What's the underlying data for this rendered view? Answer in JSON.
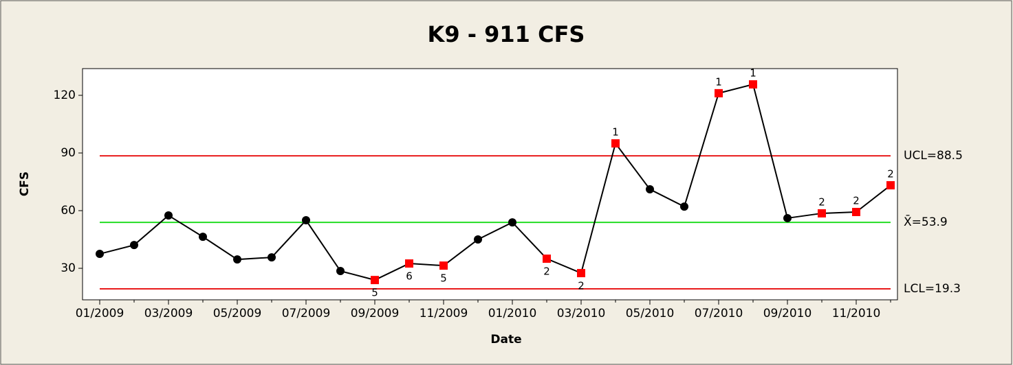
{
  "chart_data": {
    "type": "control",
    "title": "K9 - 911 CFS",
    "xlabel": "Date",
    "ylabel": "CFS",
    "categories": [
      "01/2009",
      null,
      "03/2009",
      null,
      "05/2009",
      null,
      "07/2009",
      null,
      "09/2009",
      null,
      "11/2009",
      null,
      "01/2010",
      null,
      "03/2010",
      null,
      "05/2010",
      null,
      "07/2010",
      null,
      "09/2010",
      null,
      "11/2010",
      null
    ],
    "values": [
      37.5,
      42.1,
      57.5,
      46.4,
      34.6,
      35.7,
      55,
      28.6,
      23.9,
      32.5,
      31.4,
      45,
      53.9,
      35,
      27.5,
      95,
      71.1,
      62.1,
      121.1,
      125.7,
      56.1,
      58.6,
      59.3,
      73.2
    ],
    "test_labels": [
      null,
      null,
      null,
      null,
      null,
      null,
      null,
      null,
      "5",
      "6",
      "5",
      null,
      null,
      "2",
      "2",
      "1",
      null,
      null,
      "1",
      "1",
      null,
      "2",
      "2",
      "2"
    ],
    "color": "#000000",
    "flag_color": "#ff0000",
    "limit_lines": [
      {
        "label": "UCL=88.5",
        "value": 88.5,
        "color": "#e8191a"
      },
      {
        "label": "X̄=53.9",
        "value": 53.9,
        "color": "#22dd22"
      },
      {
        "label": "LCL=19.3",
        "value": 19.3,
        "color": "#e8191a"
      }
    ],
    "ylim": [
      13.6,
      133.9
    ],
    "yticks": [
      30,
      60,
      90,
      120
    ]
  }
}
